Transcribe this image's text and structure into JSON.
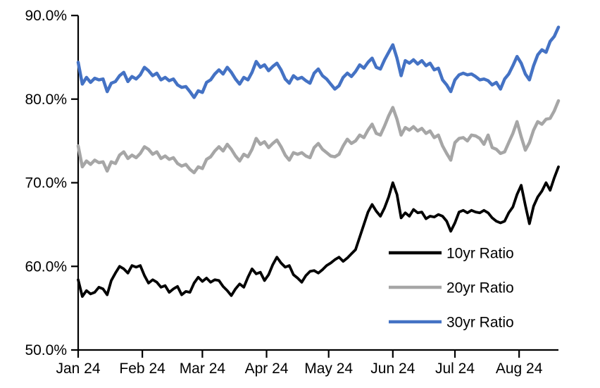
{
  "chart_data": {
    "type": "line",
    "title": "",
    "xlabel": "",
    "ylabel": "",
    "grid": false,
    "legend_position": "inside-lower-right",
    "ylim": [
      50,
      90
    ],
    "y_tick_values": [
      90,
      80,
      70,
      60,
      50
    ],
    "y_tick_labels": [
      "90.0%",
      "80.0%",
      "70.0%",
      "60.0%",
      "50.0%"
    ],
    "x_tick_labels": [
      "Jan 24",
      "Feb 24",
      "Mar 24",
      "Apr 24",
      "May 24",
      "Jun 24",
      "Jul 24",
      "Aug 24"
    ],
    "x_tick_days": [
      0,
      31,
      60,
      91,
      121,
      152,
      182,
      213
    ],
    "x_start_day": 0,
    "x_end_day": 232,
    "x_step_days": 2,
    "axis_color": "#000000",
    "series": [
      {
        "name": "10yr Ratio",
        "color": "#000000",
        "values": [
          58.4,
          56.4,
          57.1,
          56.7,
          56.9,
          57.5,
          57.3,
          56.6,
          58.3,
          59.2,
          60.0,
          59.7,
          59.2,
          60.1,
          59.9,
          60.1,
          58.9,
          58.0,
          58.4,
          58.1,
          57.5,
          57.7,
          56.9,
          57.3,
          57.6,
          56.6,
          57.0,
          56.9,
          58.0,
          58.7,
          58.2,
          58.6,
          58.1,
          58.4,
          58.3,
          57.6,
          57.1,
          56.5,
          57.3,
          57.9,
          57.5,
          58.7,
          59.7,
          59.1,
          59.3,
          58.3,
          59.0,
          60.2,
          61.1,
          60.4,
          59.9,
          60.1,
          59.0,
          58.6,
          58.1,
          58.9,
          59.4,
          59.5,
          59.2,
          59.6,
          60.1,
          60.4,
          60.8,
          61.1,
          60.6,
          61.0,
          61.5,
          62.0,
          63.5,
          65.0,
          66.5,
          67.4,
          66.6,
          66.0,
          67.0,
          68.3,
          70.0,
          68.6,
          65.8,
          66.4,
          66.0,
          66.8,
          66.4,
          66.5,
          65.7,
          66.0,
          65.9,
          66.2,
          66.0,
          65.4,
          64.2,
          65.2,
          66.5,
          66.7,
          66.4,
          66.7,
          66.5,
          66.4,
          66.7,
          66.4,
          65.8,
          65.4,
          65.2,
          65.4,
          66.4,
          67.1,
          68.6,
          69.7,
          67.3,
          65.1,
          67.2,
          68.3,
          69.0,
          70.0,
          69.1,
          70.6,
          71.9
        ]
      },
      {
        "name": "20yr Ratio",
        "color": "#A6A6A6",
        "values": [
          74.4,
          71.9,
          72.6,
          72.2,
          72.7,
          72.4,
          72.5,
          71.4,
          72.5,
          72.3,
          73.3,
          73.7,
          72.9,
          73.3,
          73.0,
          73.5,
          74.3,
          74.0,
          73.4,
          73.7,
          72.9,
          73.2,
          72.8,
          73.0,
          72.3,
          72.0,
          72.2,
          71.6,
          71.2,
          71.9,
          71.7,
          72.8,
          73.1,
          73.8,
          74.3,
          73.8,
          74.6,
          74.0,
          73.2,
          72.6,
          73.4,
          73.1,
          74.0,
          75.3,
          74.6,
          74.9,
          74.2,
          74.7,
          75.1,
          74.3,
          73.3,
          72.7,
          73.6,
          73.4,
          73.6,
          73.2,
          73.0,
          74.2,
          74.7,
          74.0,
          73.6,
          73.2,
          73.1,
          73.4,
          74.4,
          75.2,
          74.7,
          75.0,
          75.7,
          75.4,
          76.3,
          77.0,
          75.9,
          75.7,
          76.8,
          78.0,
          79.0,
          77.6,
          75.7,
          76.6,
          76.3,
          76.7,
          76.2,
          76.5,
          75.9,
          76.2,
          75.4,
          75.7,
          74.4,
          73.5,
          72.7,
          74.8,
          75.3,
          75.4,
          75.0,
          75.7,
          75.6,
          75.3,
          74.6,
          75.7,
          74.2,
          74.0,
          73.5,
          73.7,
          74.8,
          75.9,
          77.3,
          75.5,
          73.9,
          74.8,
          76.3,
          77.3,
          77.0,
          77.6,
          77.7,
          78.6,
          79.8
        ]
      },
      {
        "name": "30yr Ratio",
        "color": "#4472C4",
        "values": [
          84.4,
          81.8,
          82.6,
          82.0,
          82.5,
          82.3,
          82.4,
          80.9,
          81.9,
          82.1,
          82.8,
          83.2,
          82.1,
          82.7,
          82.4,
          82.9,
          83.8,
          83.4,
          82.8,
          83.1,
          82.3,
          82.6,
          82.2,
          82.4,
          81.7,
          81.4,
          81.5,
          80.9,
          80.2,
          81.0,
          80.8,
          82.0,
          82.3,
          83.0,
          83.5,
          83.0,
          83.8,
          83.2,
          82.4,
          81.8,
          82.6,
          82.3,
          83.2,
          84.5,
          83.8,
          84.1,
          83.4,
          83.9,
          84.3,
          83.5,
          82.4,
          81.9,
          82.8,
          82.4,
          82.6,
          82.2,
          81.9,
          83.1,
          83.6,
          82.8,
          82.4,
          81.8,
          81.2,
          81.6,
          82.6,
          83.1,
          82.7,
          83.3,
          84.1,
          83.7,
          84.4,
          84.9,
          83.8,
          83.6,
          84.7,
          85.6,
          86.5,
          84.9,
          82.8,
          84.6,
          84.3,
          84.7,
          84.2,
          84.6,
          84.0,
          84.3,
          83.5,
          83.7,
          82.3,
          81.7,
          80.9,
          82.3,
          82.9,
          83.1,
          82.9,
          83.0,
          82.7,
          82.3,
          82.4,
          82.2,
          81.7,
          82.0,
          81.2,
          82.4,
          83.0,
          84.0,
          85.1,
          84.3,
          83.0,
          82.3,
          84.0,
          85.3,
          85.9,
          85.6,
          86.9,
          87.5,
          88.6
        ]
      }
    ]
  }
}
